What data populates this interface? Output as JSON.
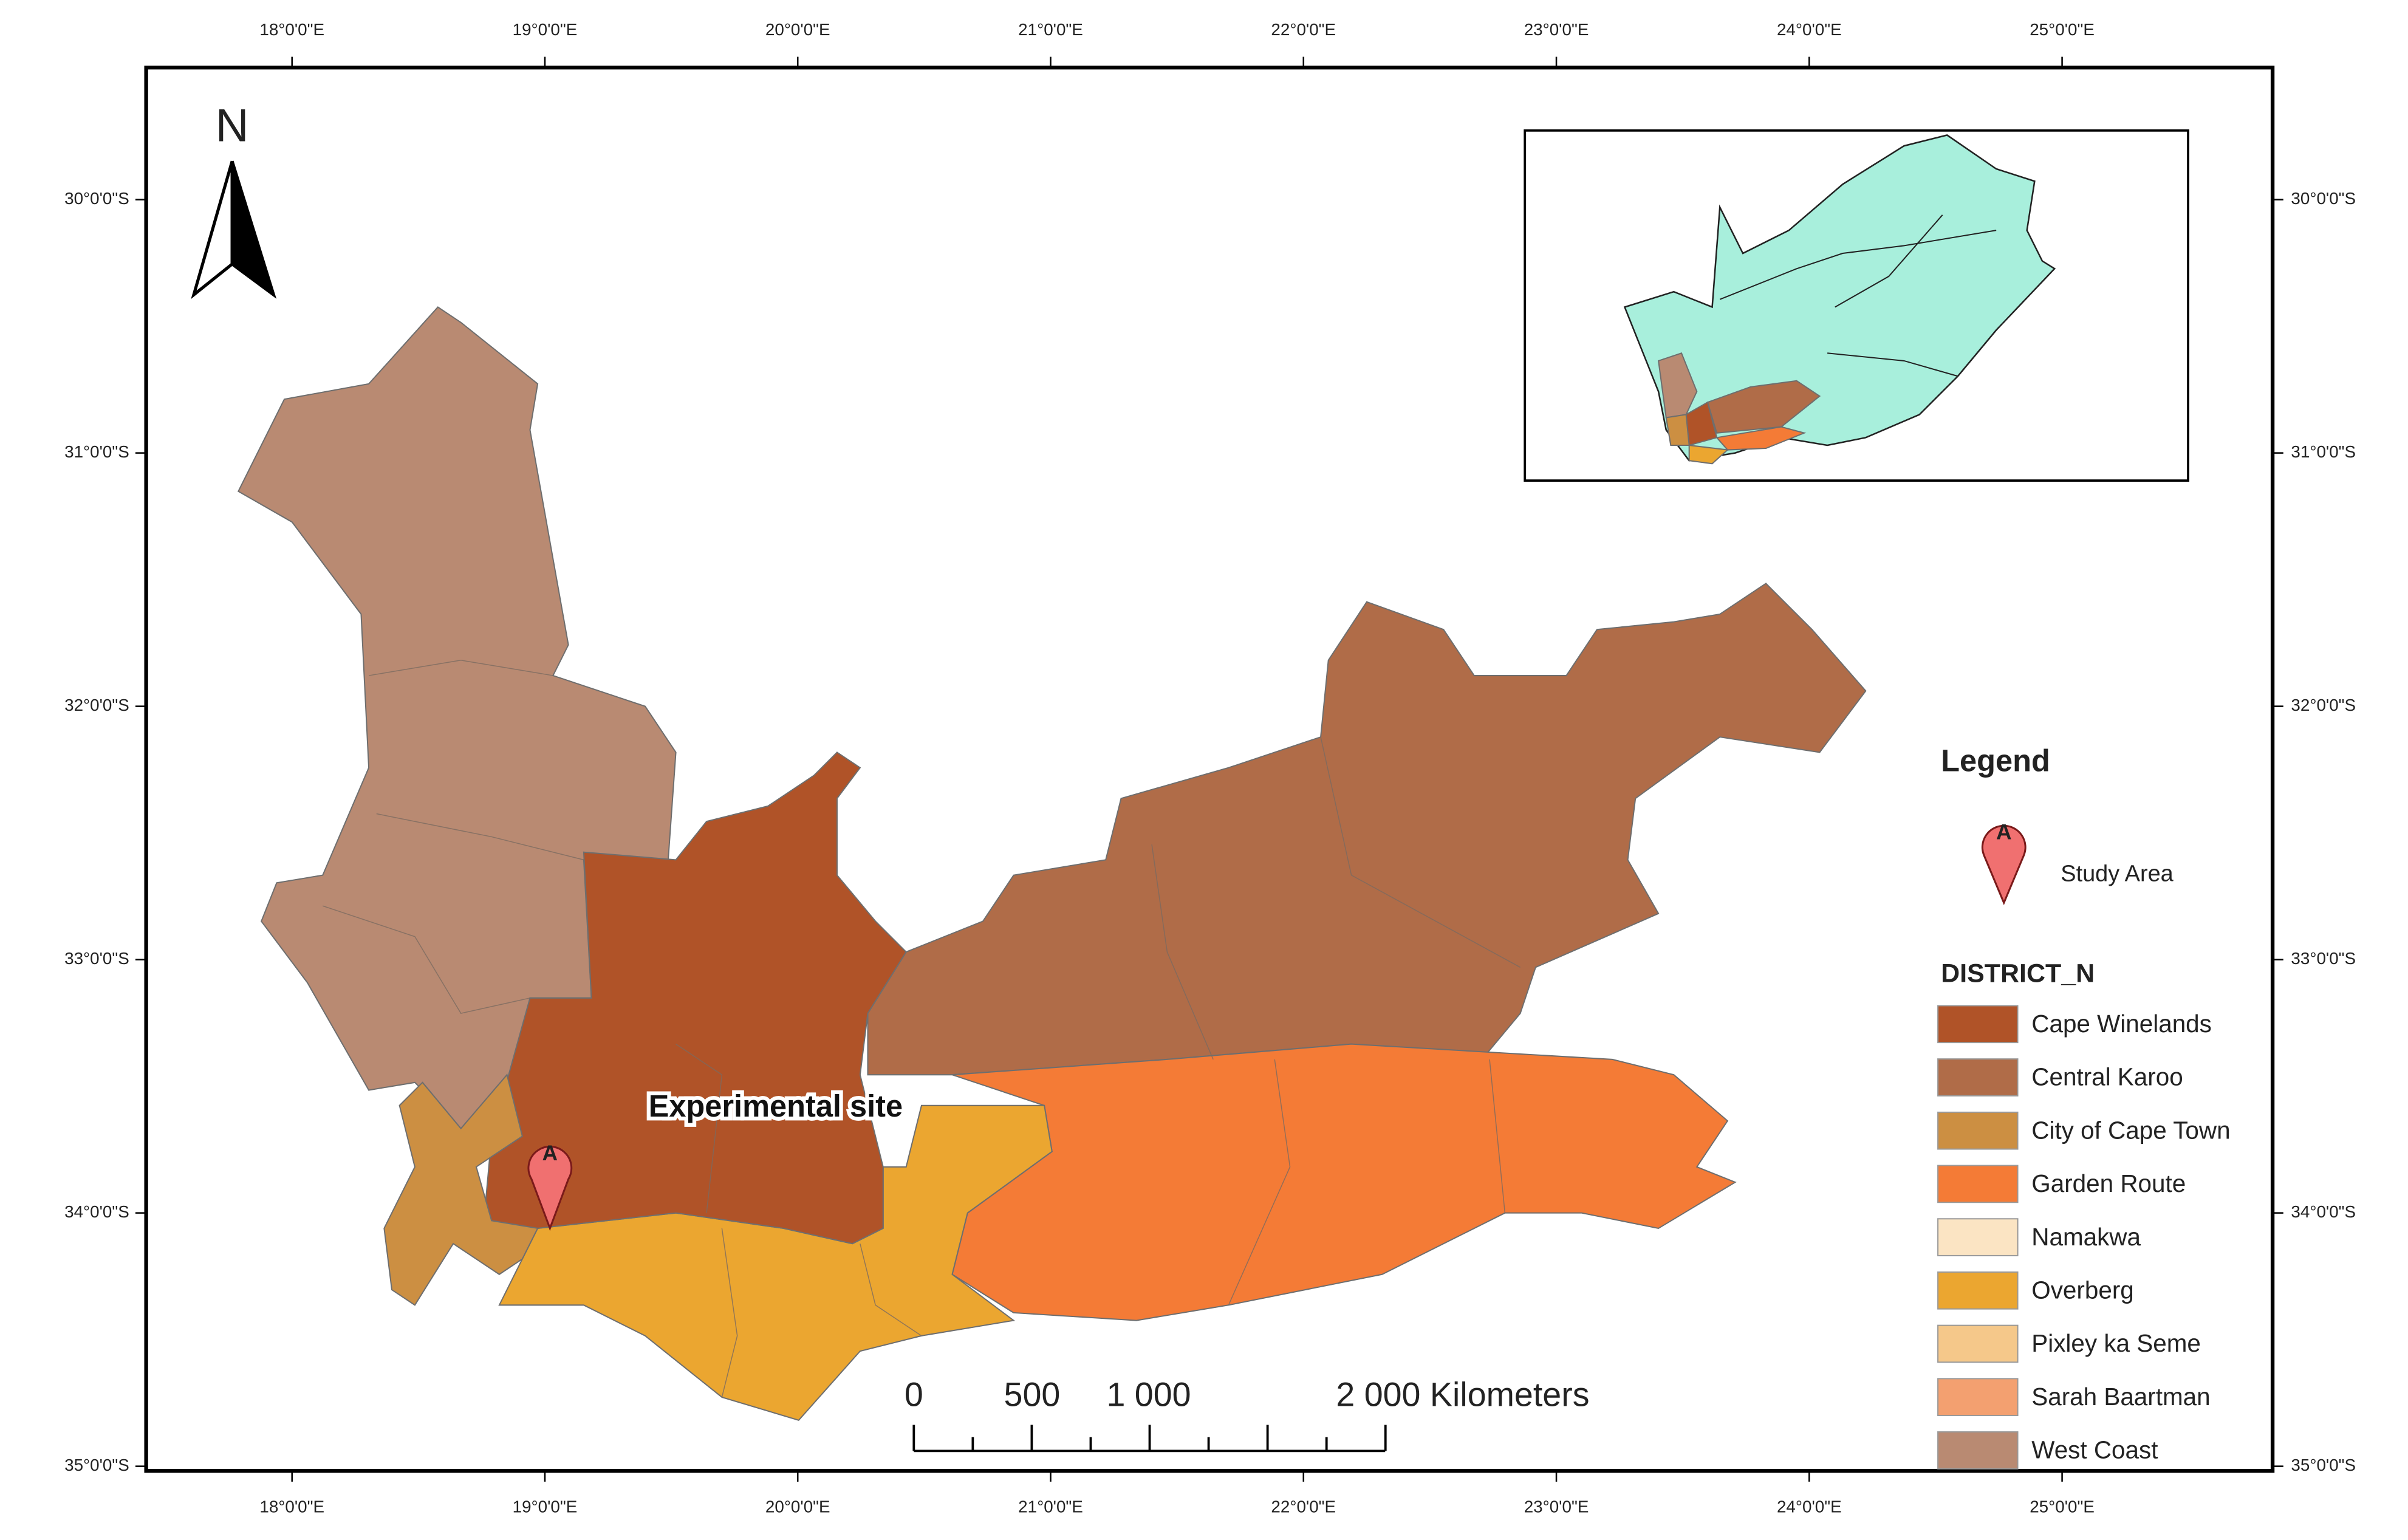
{
  "map": {
    "north_label": "N",
    "longitude_labels": [
      "18°0'0\"E",
      "19°0'0\"E",
      "20°0'0\"E",
      "21°0'0\"E",
      "22°0'0\"E",
      "23°0'0\"E",
      "24°0'0\"E",
      "25°0'0\"E"
    ],
    "latitude_labels": [
      "30°0'0\"S",
      "31°0'0\"S",
      "32°0'0\"S",
      "33°0'0\"S",
      "34°0'0\"S",
      "35°0'0\"S"
    ],
    "site_label": "Experimental site",
    "marker_letter": "A",
    "scale_labels": [
      "0",
      "500",
      "1 000",
      "2 000 Kilometers"
    ]
  },
  "legend": {
    "title": "Legend",
    "marker_letter": "A",
    "marker_label": "Study Area",
    "field": "DISTRICT_N",
    "districts": [
      {
        "name": "Cape Winelands",
        "color": "#b05328"
      },
      {
        "name": "Central Karoo",
        "color": "#b06c48"
      },
      {
        "name": "City of Cape Town",
        "color": "#cc8f42"
      },
      {
        "name": "Garden Route",
        "color": "#f47b36"
      },
      {
        "name": "Namakwa",
        "color": "#fbe4c3"
      },
      {
        "name": "Overberg",
        "color": "#eba630"
      },
      {
        "name": "Pixley ka Seme",
        "color": "#f5c88a"
      },
      {
        "name": "Sarah Baartman",
        "color": "#f3a070"
      },
      {
        "name": "West Coast",
        "color": "#b98a72"
      }
    ]
  }
}
